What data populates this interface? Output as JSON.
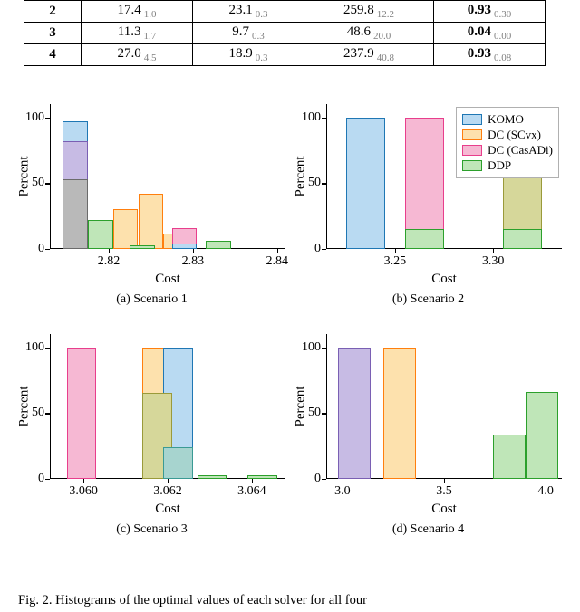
{
  "table": {
    "rows": [
      {
        "idx": "2",
        "c1": "17.4",
        "c1s": "1.0",
        "c2": "23.1",
        "c2s": "0.3",
        "c3": "259.8",
        "c3s": "12.2",
        "c4": "0.93",
        "c4s": "0.30",
        "c4bold": true
      },
      {
        "idx": "3",
        "c1": "11.3",
        "c1s": "1.7",
        "c2": "9.7",
        "c2s": "0.3",
        "c3": "48.6",
        "c3s": "20.0",
        "c4": "0.04",
        "c4s": "0.00",
        "c4bold": true
      },
      {
        "idx": "4",
        "c1": "27.0",
        "c1s": "4.5",
        "c2": "18.9",
        "c2s": "0.3",
        "c3": "237.9",
        "c3s": "40.8",
        "c4": "0.93",
        "c4s": "0.08",
        "c4bold": true
      }
    ]
  },
  "colors": {
    "komo_fill": "#b9daf2",
    "komo_edge": "#1f77b4",
    "scvx_fill": "#fde1ad",
    "scvx_edge": "#ff7f0e",
    "casadi_fill": "#f6b8d3",
    "casadi_edge": "#e83e8c",
    "ddp_fill": "#bfe6b8",
    "ddp_edge": "#2ca02c",
    "overlap_purple_fill": "#c7bbe4",
    "overlap_purple_edge": "#7a5fb3",
    "overlap_gray_fill": "#b9b9b9",
    "overlap_gray_edge": "#6b6b6b",
    "overlap_olive_fill": "#d6d79a",
    "overlap_olive_edge": "#9a9a3a",
    "overlap_teal_fill": "#a7d4cf",
    "overlap_teal_edge": "#3a9a94"
  },
  "legend": {
    "items": [
      {
        "label": "KOMO",
        "fill": "komo_fill",
        "edge": "komo_edge"
      },
      {
        "label": "DC (SCvx)",
        "fill": "scvx_fill",
        "edge": "scvx_edge"
      },
      {
        "label": "DC (CasADi)",
        "fill": "casadi_fill",
        "edge": "casadi_edge"
      },
      {
        "label": "DDP",
        "fill": "ddp_fill",
        "edge": "ddp_edge"
      }
    ]
  },
  "axes_common": {
    "ylabel": "Percent",
    "xlabel": "Cost",
    "ymax": 110
  },
  "panels": {
    "a": {
      "caption": "(a) Scenario 1",
      "xmin": 2.813,
      "xmax": 2.841,
      "xticks": [
        2.82,
        2.83,
        2.84
      ],
      "xticklabels": [
        "2.82",
        "2.83",
        "2.84"
      ],
      "yticks": [
        0,
        50,
        100
      ],
      "bars": [
        {
          "x0": 2.8145,
          "x1": 2.8175,
          "y": 97,
          "fill": "komo_fill",
          "edge": "komo_edge",
          "z": 3
        },
        {
          "x0": 2.8145,
          "x1": 2.8175,
          "y": 82,
          "fill": "overlap_purple_fill",
          "edge": "overlap_purple_edge",
          "z": 4
        },
        {
          "x0": 2.8145,
          "x1": 2.8175,
          "y": 53,
          "fill": "overlap_gray_fill",
          "edge": "overlap_gray_edge",
          "z": 5
        },
        {
          "x0": 2.8175,
          "x1": 2.8205,
          "y": 22,
          "fill": "ddp_fill",
          "edge": "ddp_edge",
          "z": 2
        },
        {
          "x0": 2.8205,
          "x1": 2.8235,
          "y": 30,
          "fill": "scvx_fill",
          "edge": "scvx_edge",
          "z": 2
        },
        {
          "x0": 2.8235,
          "x1": 2.8265,
          "y": 42,
          "fill": "scvx_fill",
          "edge": "scvx_edge",
          "z": 2
        },
        {
          "x0": 2.8225,
          "x1": 2.8255,
          "y": 3,
          "fill": "ddp_fill",
          "edge": "ddp_edge",
          "z": 6
        },
        {
          "x0": 2.8265,
          "x1": 2.8295,
          "y": 12,
          "fill": "scvx_fill",
          "edge": "scvx_edge",
          "z": 2
        },
        {
          "x0": 2.8275,
          "x1": 2.8305,
          "y": 16,
          "fill": "casadi_fill",
          "edge": "casadi_edge",
          "z": 3
        },
        {
          "x0": 2.8275,
          "x1": 2.8305,
          "y": 4,
          "fill": "komo_fill",
          "edge": "komo_edge",
          "z": 6
        },
        {
          "x0": 2.8315,
          "x1": 2.8345,
          "y": 6,
          "fill": "ddp_fill",
          "edge": "ddp_edge",
          "z": 2
        }
      ]
    },
    "b": {
      "caption": "(b) Scenario 2",
      "xmin": 3.215,
      "xmax": 3.335,
      "xticks": [
        3.25,
        3.3
      ],
      "xticklabels": [
        "3.25",
        "3.30"
      ],
      "yticks": [
        0,
        50,
        100
      ],
      "bars": [
        {
          "x0": 3.225,
          "x1": 3.245,
          "y": 100,
          "fill": "komo_fill",
          "edge": "komo_edge",
          "z": 2
        },
        {
          "x0": 3.255,
          "x1": 3.275,
          "y": 100,
          "fill": "casadi_fill",
          "edge": "casadi_edge",
          "z": 2
        },
        {
          "x0": 3.255,
          "x1": 3.275,
          "y": 15,
          "fill": "ddp_fill",
          "edge": "ddp_edge",
          "z": 5
        },
        {
          "x0": 3.305,
          "x1": 3.325,
          "y": 100,
          "fill": "scvx_fill",
          "edge": "scvx_edge",
          "z": 2
        },
        {
          "x0": 3.305,
          "x1": 3.325,
          "y": 100,
          "fill": "overlap_olive_fill",
          "edge": "overlap_olive_edge",
          "z": 3
        },
        {
          "x0": 3.305,
          "x1": 3.325,
          "y": 15,
          "fill": "ddp_fill",
          "edge": "ddp_edge",
          "z": 5
        }
      ]
    },
    "c": {
      "caption": "(c) Scenario 3",
      "xmin": 3.0592,
      "xmax": 3.0648,
      "xticks": [
        3.06,
        3.062,
        3.064
      ],
      "xticklabels": [
        "3.060",
        "3.062",
        "3.064"
      ],
      "yticks": [
        0,
        50,
        100
      ],
      "bars": [
        {
          "x0": 3.0596,
          "x1": 3.0603,
          "y": 100,
          "fill": "casadi_fill",
          "edge": "casadi_edge",
          "z": 2
        },
        {
          "x0": 3.0614,
          "x1": 3.0621,
          "y": 100,
          "fill": "scvx_fill",
          "edge": "scvx_edge",
          "z": 2
        },
        {
          "x0": 3.0614,
          "x1": 3.0621,
          "y": 65,
          "fill": "overlap_olive_fill",
          "edge": "overlap_olive_edge",
          "z": 3
        },
        {
          "x0": 3.0619,
          "x1": 3.0626,
          "y": 100,
          "fill": "komo_fill",
          "edge": "komo_edge",
          "z": 2
        },
        {
          "x0": 3.0619,
          "x1": 3.0626,
          "y": 24,
          "fill": "overlap_teal_fill",
          "edge": "overlap_teal_edge",
          "z": 4
        },
        {
          "x0": 3.0627,
          "x1": 3.0634,
          "y": 3,
          "fill": "ddp_fill",
          "edge": "ddp_edge",
          "z": 2
        },
        {
          "x0": 3.0639,
          "x1": 3.0646,
          "y": 3,
          "fill": "ddp_fill",
          "edge": "ddp_edge",
          "z": 2
        }
      ]
    },
    "d": {
      "caption": "(d) Scenario 4",
      "xmin": 2.92,
      "xmax": 4.08,
      "xticks": [
        3.0,
        3.5,
        4.0
      ],
      "xticklabels": [
        "3.0",
        "3.5",
        "4.0"
      ],
      "yticks": [
        0,
        50,
        100
      ],
      "bars": [
        {
          "x0": 2.98,
          "x1": 3.14,
          "y": 100,
          "fill": "komo_fill",
          "edge": "komo_edge",
          "z": 2
        },
        {
          "x0": 2.98,
          "x1": 3.14,
          "y": 100,
          "fill": "overlap_purple_fill",
          "edge": "overlap_purple_edge",
          "z": 3
        },
        {
          "x0": 3.2,
          "x1": 3.36,
          "y": 100,
          "fill": "scvx_fill",
          "edge": "scvx_edge",
          "z": 2
        },
        {
          "x0": 3.74,
          "x1": 3.9,
          "y": 34,
          "fill": "ddp_fill",
          "edge": "ddp_edge",
          "z": 2
        },
        {
          "x0": 3.9,
          "x1": 4.06,
          "y": 66,
          "fill": "ddp_fill",
          "edge": "ddp_edge",
          "z": 2
        }
      ]
    }
  },
  "figcaption": "Fig.  2.     Histograms  of  the  optimal  values  of  each  solver  for  all  four"
}
